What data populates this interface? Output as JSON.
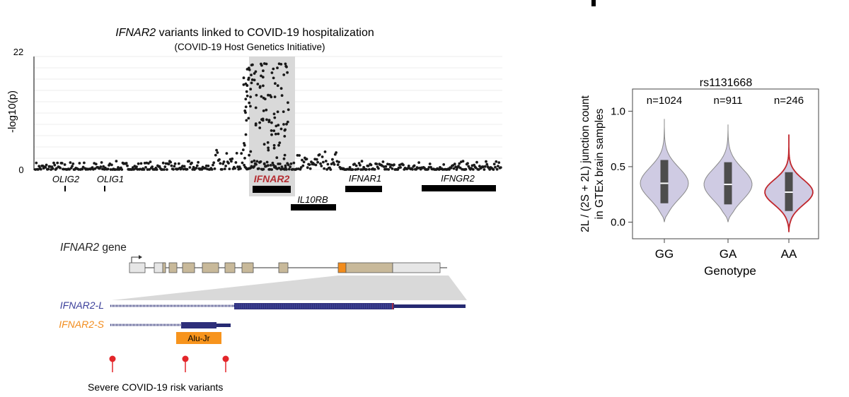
{
  "manhattan": {
    "title_gene": "IFNAR2",
    "title_rest": " variants linked to COVID-19 hospitalization",
    "subtitle": "(COVID-19 Host Genetics Initiative)",
    "ylabel": "-log10(p)",
    "ymax_label": "22",
    "ymin_label": "0",
    "colors": {
      "points": "#1a1a1a",
      "highlight": "#d9d9d9",
      "gene_bar": "#000000",
      "ifnar2_label": "#b52e33"
    },
    "genes": [
      {
        "label": "OLIG2",
        "highlight": false
      },
      {
        "label": "OLIG1",
        "highlight": false
      },
      {
        "label": "IFNAR2",
        "highlight": true
      },
      {
        "label": "IL10RB",
        "highlight": false
      },
      {
        "label": "IFNAR1",
        "highlight": false
      },
      {
        "label": "IFNGR2",
        "highlight": false
      }
    ]
  },
  "gene_model": {
    "title_gene": "IFNAR2",
    "title_rest": " gene",
    "colors": {
      "exon": "#c8b99a",
      "utr": "#e6e6e6",
      "alt_exon": "#f28c1c",
      "isoform_l": "#3b3f9a",
      "isoform_s": "#f28c1c",
      "transcript": "#262a72",
      "variant": "#e3262a",
      "alu": "#f7941d"
    },
    "isoforms": [
      {
        "label": "IFNAR2-L"
      },
      {
        "label": "IFNAR2-S"
      }
    ],
    "alu_label": "Alu-Jr",
    "variants_label": "Severe COVID-19 risk variants"
  },
  "chart_data": {
    "type": "violin",
    "title": "rs1131668",
    "xlabel": "Genotype",
    "ylabel_line1": "2L / (2S + 2L) junction count",
    "ylabel_line2": "in GTEx brain samples",
    "ylim": [
      -0.15,
      1.2
    ],
    "yticks": [
      "0.0",
      "0.5",
      "1.0"
    ],
    "categories": [
      "GG",
      "GA",
      "AA"
    ],
    "n_labels": [
      "n=1024",
      "n=911",
      "n=246"
    ],
    "medians": [
      0.35,
      0.34,
      0.27
    ],
    "q1": [
      0.17,
      0.16,
      0.1
    ],
    "q3": [
      0.56,
      0.54,
      0.45
    ],
    "min": [
      0.0,
      0.0,
      -0.09
    ],
    "max": [
      0.93,
      0.88,
      0.79
    ],
    "colors": {
      "fill": "#cfcbe3",
      "outline_default": "#8a8a8a",
      "outline_AA": "#c0272d",
      "box": "#4d4d4d",
      "median": "#ffffff"
    }
  }
}
